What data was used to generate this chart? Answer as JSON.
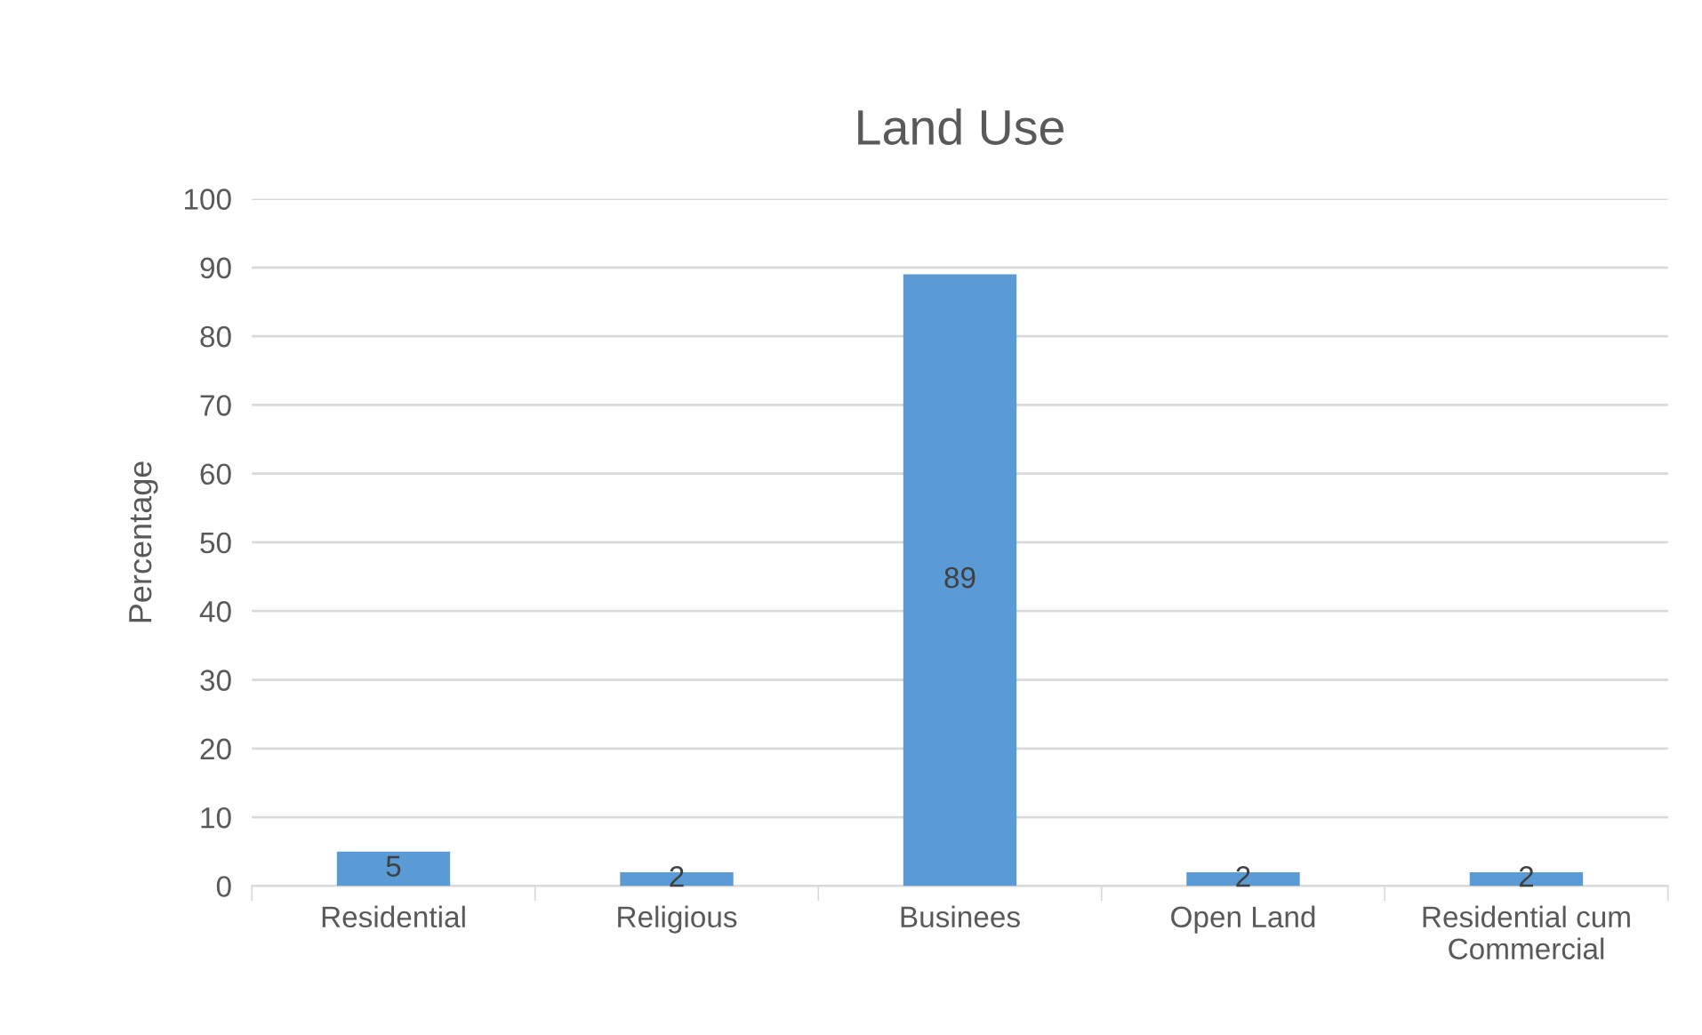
{
  "chart_data": {
    "type": "bar",
    "title": "Land Use",
    "ylabel": "Percentage",
    "categories": [
      "Residential",
      "Religious",
      "Businees",
      "Open Land",
      "Residential cum\nCommercial"
    ],
    "values": [
      5,
      2,
      89,
      2,
      2
    ],
    "color": "#5b9bd5",
    "ylim": [
      0,
      100
    ],
    "yticks": [
      0,
      10,
      20,
      30,
      40,
      50,
      60,
      70,
      80,
      90,
      100
    ],
    "grid": "y",
    "data_labels": true
  }
}
